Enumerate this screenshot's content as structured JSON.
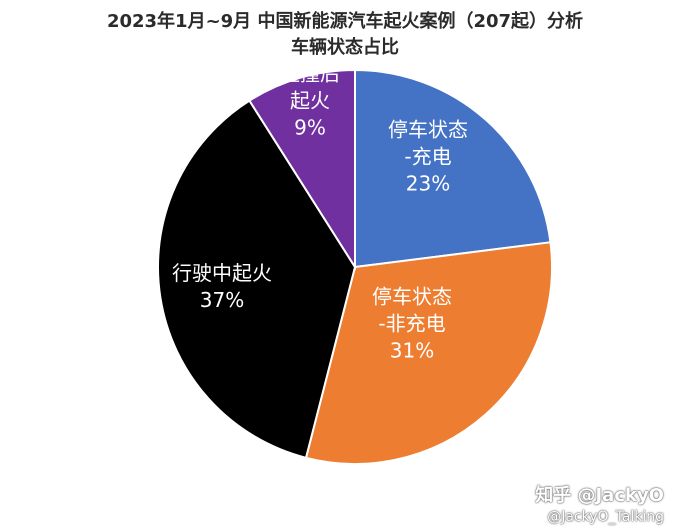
{
  "header": {
    "title_line1": "2023年1月~9月  中国新能源汽车起火案例（207起）分析",
    "title_line2": "车辆状态占比"
  },
  "chart_data": {
    "type": "pie",
    "start_angle_deg": 0,
    "direction": "clockwise",
    "slices": [
      {
        "label_lines": [
          "停车状态",
          "-充电"
        ],
        "value": 23,
        "value_label": "23%",
        "color": "#4472c4"
      },
      {
        "label_lines": [
          "停车状态",
          "-非充电"
        ],
        "value": 31,
        "value_label": "31%",
        "color": "#ed7d31"
      },
      {
        "label_lines": [
          "行驶中起火"
        ],
        "value": 37,
        "value_label": "37%",
        "color": "#000000"
      },
      {
        "label_lines": [
          "碰撞后",
          "起火"
        ],
        "value": 9,
        "value_label": "9%",
        "color": "#7030a0"
      }
    ]
  },
  "watermark": {
    "line1": "知乎 @JackyO",
    "line2": "@JackyO_Talking"
  }
}
